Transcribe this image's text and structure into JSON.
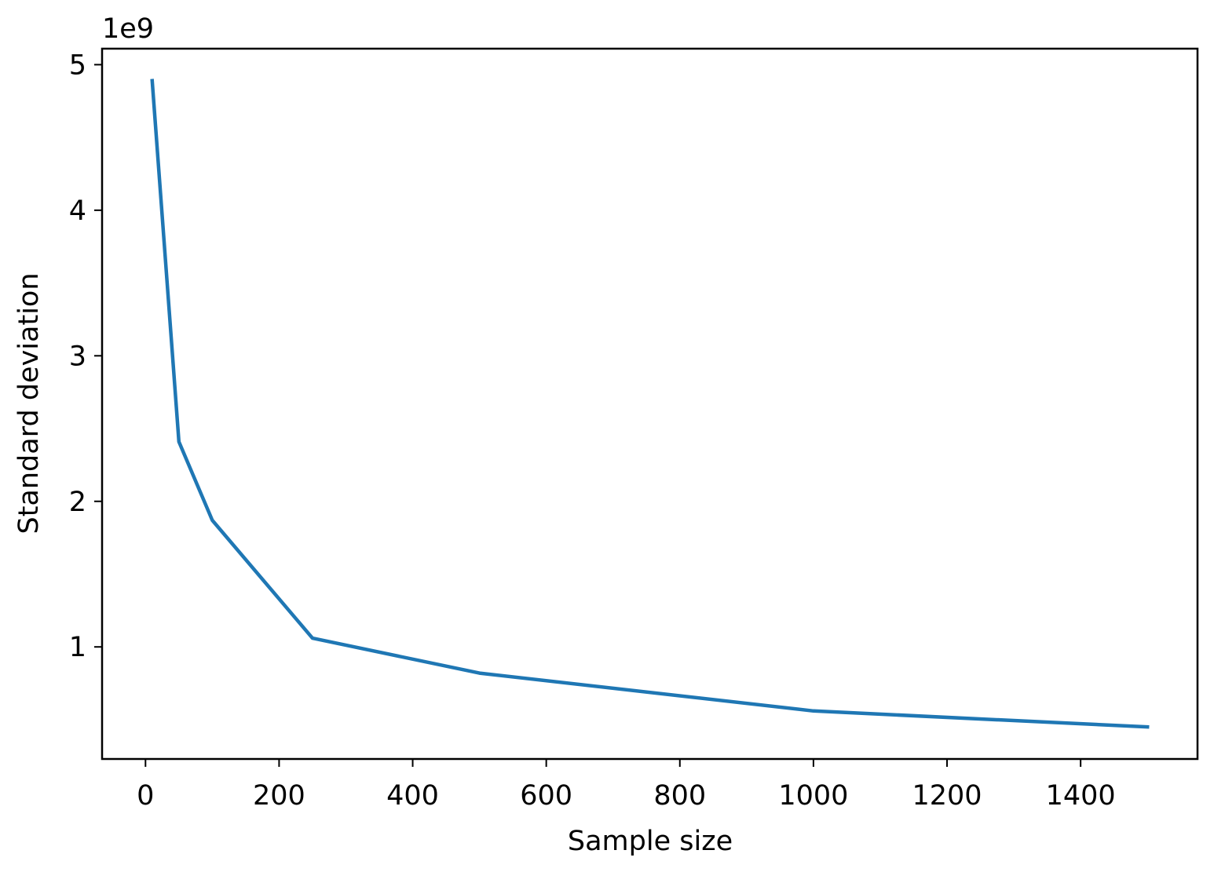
{
  "chart_data": {
    "type": "line",
    "title": "",
    "xlabel": "Sample size",
    "ylabel": "Standard deviation",
    "y_offset_label": "1e9",
    "y_scale_factor": 1000000000,
    "xlim": [
      -65,
      1575
    ],
    "ylim": [
      230000000,
      5110000000
    ],
    "xticks": [
      0,
      200,
      400,
      600,
      800,
      1000,
      1200,
      1400
    ],
    "xtick_labels": [
      "0",
      "200",
      "400",
      "600",
      "800",
      "1000",
      "1200",
      "1400"
    ],
    "yticks": [
      1,
      2,
      3,
      4,
      5
    ],
    "ytick_labels": [
      "1",
      "2",
      "3",
      "4",
      "5"
    ],
    "grid": false,
    "series": [
      {
        "color": "#1f77b4",
        "x": [
          10,
          50,
          100,
          250,
          500,
          1000,
          1500
        ],
        "y": [
          4890000000,
          2410000000,
          1870000000,
          1060000000,
          820000000,
          560000000,
          450000000
        ]
      }
    ]
  }
}
